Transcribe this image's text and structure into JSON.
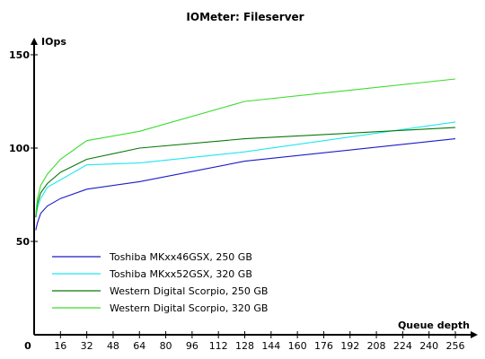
{
  "chart_data": {
    "type": "line",
    "title": "IOMeter: Fileserver",
    "xlabel": "Queue depth",
    "ylabel": "IOps",
    "xlim": [
      0,
      256
    ],
    "ylim": [
      0,
      150
    ],
    "x_ticks": [
      0,
      16,
      32,
      48,
      64,
      80,
      96,
      112,
      128,
      144,
      160,
      176,
      192,
      208,
      224,
      240,
      256
    ],
    "y_ticks": [
      50,
      100,
      150
    ],
    "grid": false,
    "legend_position": "bottom-left",
    "x": [
      1,
      2,
      4,
      8,
      16,
      32,
      64,
      128,
      256
    ],
    "series": [
      {
        "name": "Toshiba MKxx46GSX, 250 GB",
        "color": "#1c1cc8",
        "values": [
          56,
          60,
          65,
          69,
          73,
          78,
          82,
          93,
          105
        ]
      },
      {
        "name": "Toshiba MKxx52GSX, 320 GB",
        "color": "#1ee6f0",
        "values": [
          63,
          68,
          73,
          79,
          83,
          91,
          92,
          98,
          114
        ]
      },
      {
        "name": "Western Digital Scorpio, 250 GB",
        "color": "#0a780a",
        "values": [
          63,
          70,
          76,
          81,
          87,
          94,
          100,
          105,
          111
        ]
      },
      {
        "name": "Western Digital Scorpio, 320 GB",
        "color": "#3cdc2d",
        "values": [
          64,
          73,
          80,
          86,
          94,
          104,
          109,
          125,
          137
        ]
      }
    ]
  }
}
